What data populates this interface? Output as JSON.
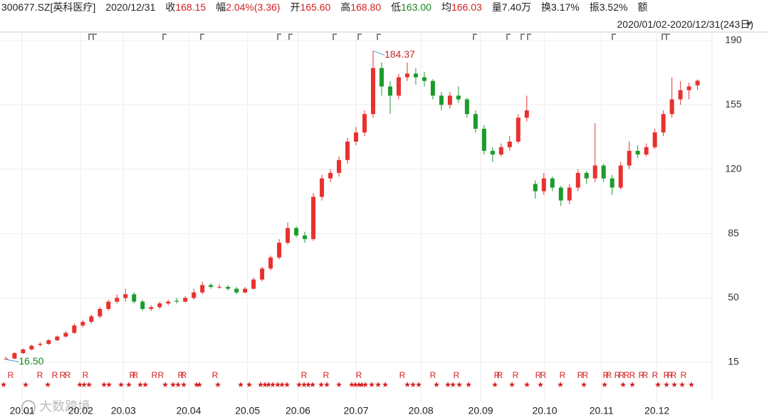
{
  "header": {
    "code": "300677.SZ[英科医疗]",
    "date": "2020/12/31",
    "fields": [
      {
        "label": "收",
        "value": "168.15"
      },
      {
        "label": "幅",
        "value": "2.04%(3.36)"
      },
      {
        "label": "开",
        "value": "165.60"
      },
      {
        "label": "高",
        "value": "168.80"
      },
      {
        "label": "低",
        "value": "163.00"
      },
      {
        "label": "均",
        "value": "166.03"
      },
      {
        "label": "量",
        "value": "7.40万"
      },
      {
        "label": "换",
        "value": "3.17%"
      },
      {
        "label": "振",
        "value": "3.52%"
      },
      {
        "label": "额"
      }
    ],
    "range": "2020/01/02-2020/12/31(243日)"
  },
  "watermark": "大数跨境",
  "chart_data": {
    "type": "candlestick",
    "up_color": "#e8312f",
    "down_color": "#1c9b2c",
    "ylim": [
      -6.7,
      194.6
    ],
    "yticks": [
      15,
      50,
      85,
      120,
      155,
      190
    ],
    "grid": true,
    "xlim": [
      -0.7,
      82.7
    ],
    "xticks": [
      {
        "value": 1.9,
        "label": "20.01"
      },
      {
        "value": 8.75,
        "label": "20.02"
      },
      {
        "value": 13.75,
        "label": "20.03"
      },
      {
        "value": 21.4,
        "label": "20.04"
      },
      {
        "value": 28.3,
        "label": "20.05"
      },
      {
        "value": 34.2,
        "label": "20.06"
      },
      {
        "value": 41,
        "label": "20.07"
      },
      {
        "value": 48.6,
        "label": "20.08"
      },
      {
        "value": 55.6,
        "label": "20.09"
      },
      {
        "value": 63.1,
        "label": "20.10"
      },
      {
        "value": 69.75,
        "label": "20.11"
      },
      {
        "value": 76.25,
        "label": "20.12"
      }
    ],
    "max_label": 184.37,
    "min_label": {
      "value": 16.5,
      "label": "16.50"
    },
    "event_r": "R",
    "event_star": "★",
    "candles": [
      [
        16.8,
        18,
        16.5,
        17
      ],
      [
        17,
        20.5,
        16.8,
        20
      ],
      [
        20,
        22.5,
        19.5,
        22
      ],
      [
        22,
        24.5,
        21.5,
        24
      ],
      [
        24.5,
        26,
        23.5,
        25
      ],
      [
        25,
        27.5,
        24.5,
        27
      ],
      [
        27,
        29.5,
        26.5,
        29
      ],
      [
        29,
        32,
        28.5,
        31
      ],
      [
        31,
        36,
        30.5,
        35
      ],
      [
        35,
        38,
        34,
        37
      ],
      [
        37,
        41,
        36,
        40
      ],
      [
        40,
        45,
        39,
        44
      ],
      [
        44,
        49,
        43,
        48
      ],
      [
        48,
        52,
        47,
        50
      ],
      [
        50,
        55,
        48,
        52
      ],
      [
        52,
        53,
        47,
        48
      ],
      [
        48,
        49,
        43,
        44
      ],
      [
        44,
        46,
        43,
        45
      ],
      [
        45,
        48,
        44,
        47
      ],
      [
        47,
        49,
        46,
        48
      ],
      [
        48.5,
        50,
        47,
        48
      ],
      [
        48,
        51,
        47.5,
        50
      ],
      [
        50,
        55,
        49,
        53
      ],
      [
        53,
        59,
        52,
        57
      ],
      [
        57,
        58,
        55,
        56
      ],
      [
        56,
        57.5,
        55,
        56
      ],
      [
        56,
        57,
        54,
        55
      ],
      [
        55,
        56,
        52,
        53
      ],
      [
        53,
        56,
        52.5,
        55
      ],
      [
        55,
        61,
        54.5,
        60
      ],
      [
        60,
        67,
        59,
        66
      ],
      [
        66,
        73,
        65,
        72
      ],
      [
        72,
        82,
        71,
        80
      ],
      [
        80,
        91,
        79,
        88
      ],
      [
        88,
        89,
        83,
        84
      ],
      [
        84,
        86,
        80,
        82
      ],
      [
        82,
        107,
        81,
        105
      ],
      [
        105,
        117,
        103,
        115
      ],
      [
        115,
        120,
        113,
        118
      ],
      [
        118,
        127,
        116,
        125
      ],
      [
        125,
        137,
        123,
        135
      ],
      [
        135,
        143,
        133,
        140
      ],
      [
        140,
        152,
        138,
        150
      ],
      [
        150,
        184.37,
        148,
        175
      ],
      [
        175,
        178,
        160,
        165
      ],
      [
        165,
        168,
        150,
        160
      ],
      [
        160,
        172,
        158,
        170
      ],
      [
        170,
        178,
        168,
        172
      ],
      [
        172,
        175,
        166,
        170
      ],
      [
        170,
        173,
        165,
        168
      ],
      [
        168,
        169,
        158,
        160
      ],
      [
        160,
        162,
        152,
        155
      ],
      [
        155,
        162,
        153,
        160
      ],
      [
        160,
        165,
        156,
        158
      ],
      [
        158,
        159,
        148,
        150
      ],
      [
        150,
        152,
        140,
        142
      ],
      [
        142,
        144,
        128,
        130
      ],
      [
        130,
        132,
        124,
        128
      ],
      [
        128,
        134,
        127,
        132
      ],
      [
        132,
        138,
        130,
        135
      ],
      [
        135,
        150,
        134,
        148
      ],
      [
        148,
        160,
        146,
        152
      ],
      [
        112,
        114,
        104,
        108
      ],
      [
        108,
        118,
        106,
        115
      ],
      [
        115,
        116,
        108,
        110
      ],
      [
        110,
        111,
        100,
        103
      ],
      [
        103,
        112,
        101,
        110
      ],
      [
        110,
        120,
        108,
        118
      ],
      [
        118,
        119,
        112,
        115
      ],
      [
        115,
        145,
        113,
        122
      ],
      [
        122,
        123,
        113,
        115
      ],
      [
        115,
        117,
        106,
        110
      ],
      [
        110,
        124,
        109,
        122
      ],
      [
        122,
        135,
        120,
        130
      ],
      [
        130,
        133,
        126,
        128
      ],
      [
        128,
        134,
        127,
        132
      ],
      [
        132,
        142,
        131,
        140
      ],
      [
        140,
        152,
        138,
        150
      ],
      [
        150,
        170,
        148,
        158
      ],
      [
        158,
        168,
        155,
        163
      ],
      [
        163,
        167,
        158,
        165
      ],
      [
        165.6,
        168.8,
        163,
        168.15
      ]
    ]
  }
}
